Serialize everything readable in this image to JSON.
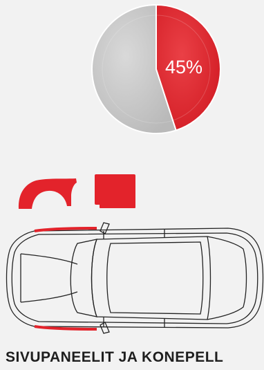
{
  "stat": {
    "percent_label": "45%",
    "share": 0.45,
    "highlight_color": "#e3232b",
    "rest_color": "#c8c8c8"
  },
  "highlighted_parts": [
    "front-fender",
    "hood"
  ],
  "caption": "SIVUPANEELIT JA KONEPELL"
}
